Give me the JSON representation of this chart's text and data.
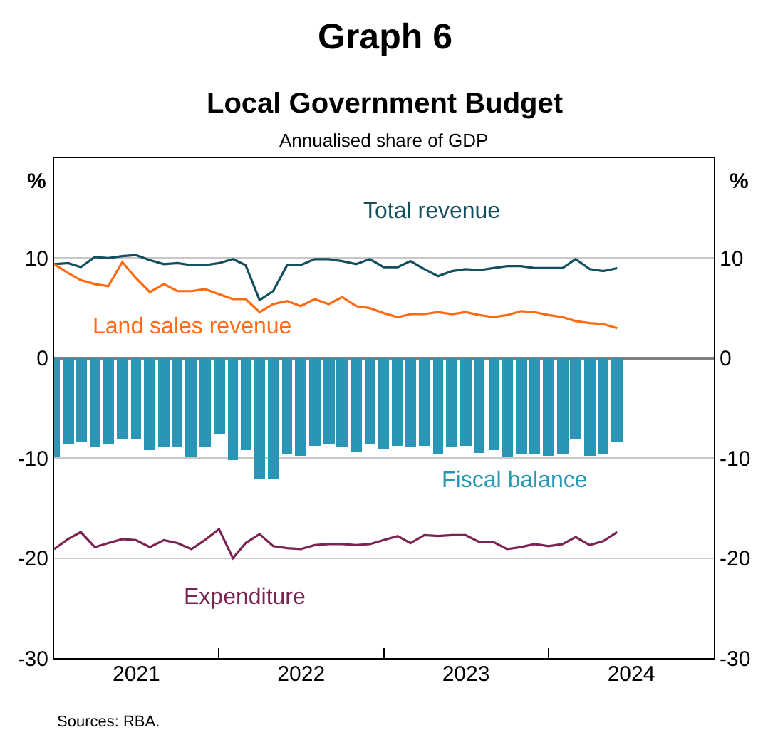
{
  "chart_data": {
    "type": "line",
    "title": "Graph 6",
    "subtitle": "Local Government Budget",
    "ylabel": "%",
    "y2label": "%",
    "annotations": [
      "Annualised share of GDP",
      "Sources: RBA."
    ],
    "x": [
      "2021-01",
      "2021-02",
      "2021-03",
      "2021-04",
      "2021-05",
      "2021-06",
      "2021-07",
      "2021-08",
      "2021-09",
      "2021-10",
      "2021-11",
      "2021-12",
      "2022-01",
      "2022-02",
      "2022-03",
      "2022-04",
      "2022-05",
      "2022-06",
      "2022-07",
      "2022-08",
      "2022-09",
      "2022-10",
      "2022-11",
      "2022-12",
      "2023-01",
      "2023-02",
      "2023-03",
      "2023-04",
      "2023-05",
      "2023-06",
      "2023-07",
      "2023-08",
      "2023-09",
      "2023-10",
      "2023-11",
      "2023-12",
      "2024-01",
      "2024-02",
      "2024-03",
      "2024-04",
      "2024-05",
      "2024-06"
    ],
    "series": [
      {
        "name": "Fiscal balance",
        "type": "bar",
        "color": "#2996b5",
        "values": [
          -9.9,
          -8.7,
          -8.3,
          -8.9,
          -8.6,
          -8.0,
          -8.0,
          -9.2,
          -8.9,
          -8.9,
          -9.9,
          -8.9,
          -7.7,
          -10.2,
          -9.2,
          -12.0,
          -12.1,
          -9.7,
          -9.8,
          -8.8,
          -8.6,
          -8.9,
          -9.4,
          -8.7,
          -9.1,
          -8.8,
          -8.9,
          -8.8,
          -9.7,
          -8.9,
          -8.8,
          -9.5,
          -9.2,
          -9.9,
          -9.7,
          -9.7,
          -9.8,
          -9.7,
          -8.1,
          -9.8,
          -9.7,
          -8.4
        ]
      },
      {
        "name": "Total revenue",
        "color": "#134f5f",
        "values": [
          9.4,
          9.5,
          9.1,
          10.1,
          10.0,
          10.2,
          10.3,
          9.8,
          9.4,
          9.5,
          9.3,
          9.3,
          9.5,
          9.9,
          9.3,
          5.8,
          6.7,
          9.3,
          9.3,
          9.9,
          9.9,
          9.7,
          9.4,
          9.9,
          9.1,
          9.1,
          9.7,
          8.9,
          8.2,
          8.7,
          8.9,
          8.8,
          9.0,
          9.2,
          9.2,
          9.0,
          9.0,
          9.0,
          9.9,
          8.9,
          8.7,
          9.0
        ]
      },
      {
        "name": "Land sales revenue",
        "color": "#ff6a13",
        "values": [
          9.4,
          8.5,
          7.8,
          7.4,
          7.2,
          9.6,
          8.0,
          6.6,
          7.4,
          6.7,
          6.7,
          6.9,
          6.4,
          5.9,
          5.9,
          4.6,
          5.4,
          5.7,
          5.2,
          5.9,
          5.4,
          6.1,
          5.2,
          5.0,
          4.5,
          4.1,
          4.4,
          4.4,
          4.6,
          4.4,
          4.6,
          4.3,
          4.1,
          4.3,
          4.7,
          4.6,
          4.3,
          4.1,
          3.7,
          3.5,
          3.4,
          3.0
        ]
      },
      {
        "name": "Expenditure",
        "color": "#7b2353",
        "values": [
          -19.1,
          -18.1,
          -17.4,
          -18.9,
          -18.5,
          -18.1,
          -18.2,
          -18.9,
          -18.2,
          -18.5,
          -19.1,
          -18.2,
          -17.1,
          -20.0,
          -18.5,
          -17.6,
          -18.8,
          -19.0,
          -19.1,
          -18.7,
          -18.6,
          -18.6,
          -18.7,
          -18.6,
          -18.2,
          -17.8,
          -18.5,
          -17.7,
          -17.8,
          -17.7,
          -17.7,
          -18.4,
          -18.4,
          -19.1,
          -18.9,
          -18.6,
          -18.8,
          -18.6,
          -17.9,
          -18.7,
          -18.3,
          -17.4
        ]
      }
    ],
    "xlim": [
      "2021-01-01",
      "2025-01-01"
    ],
    "xticks": [
      {
        "value": "2022-01-01",
        "label": null
      },
      {
        "value": "2023-01-01",
        "label": null
      },
      {
        "value": "2024-01-01",
        "label": null
      },
      {
        "value": "2021-07-02",
        "label": "2021"
      },
      {
        "value": "2022-07-02",
        "label": "2022"
      },
      {
        "value": "2023-07-02",
        "label": "2023"
      },
      {
        "value": "2024-07-02",
        "label": "2024"
      }
    ],
    "ylim": [
      -30,
      20
    ],
    "yticks": [
      -30,
      -20,
      -10,
      0,
      10
    ],
    "y2lim": [
      -30,
      20
    ],
    "y2ticks": [
      -30,
      -20,
      -10,
      0,
      10
    ],
    "grid": "y",
    "legend": false,
    "line_style": "solid",
    "marker": "none"
  }
}
